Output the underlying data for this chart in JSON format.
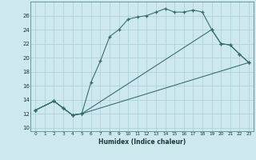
{
  "xlabel": "Humidex (Indice chaleur)",
  "bg_color": "#cde8ee",
  "line_color": "#2e6b6b",
  "grid_color": "#aacdd4",
  "xlim": [
    -0.5,
    23.5
  ],
  "ylim": [
    9.5,
    28
  ],
  "xticks": [
    0,
    1,
    2,
    3,
    4,
    5,
    6,
    7,
    8,
    9,
    10,
    11,
    12,
    13,
    14,
    15,
    16,
    17,
    18,
    19,
    20,
    21,
    22,
    23
  ],
  "yticks": [
    10,
    12,
    14,
    16,
    18,
    20,
    22,
    24,
    26
  ],
  "x_main": [
    0,
    2,
    3,
    4,
    5,
    6,
    7,
    8,
    9,
    10,
    11,
    12,
    13,
    14,
    15,
    16,
    17,
    18,
    19,
    20,
    21,
    22,
    23
  ],
  "y_main": [
    12.5,
    13.8,
    12.8,
    11.8,
    12.0,
    16.5,
    19.5,
    23.0,
    24.0,
    25.5,
    25.8,
    26.0,
    26.5,
    27.0,
    26.5,
    26.5,
    26.8,
    26.5,
    24.0,
    22.0,
    21.8,
    20.5,
    19.3
  ],
  "x_low": [
    0,
    2,
    3,
    4,
    5,
    23
  ],
  "y_low": [
    12.5,
    13.8,
    12.8,
    11.8,
    12.0,
    19.3
  ],
  "x_mid": [
    0,
    2,
    3,
    4,
    5,
    19,
    20,
    21,
    22,
    23
  ],
  "y_mid": [
    12.5,
    13.8,
    12.8,
    11.8,
    12.0,
    24.0,
    22.0,
    21.8,
    20.5,
    19.3
  ]
}
